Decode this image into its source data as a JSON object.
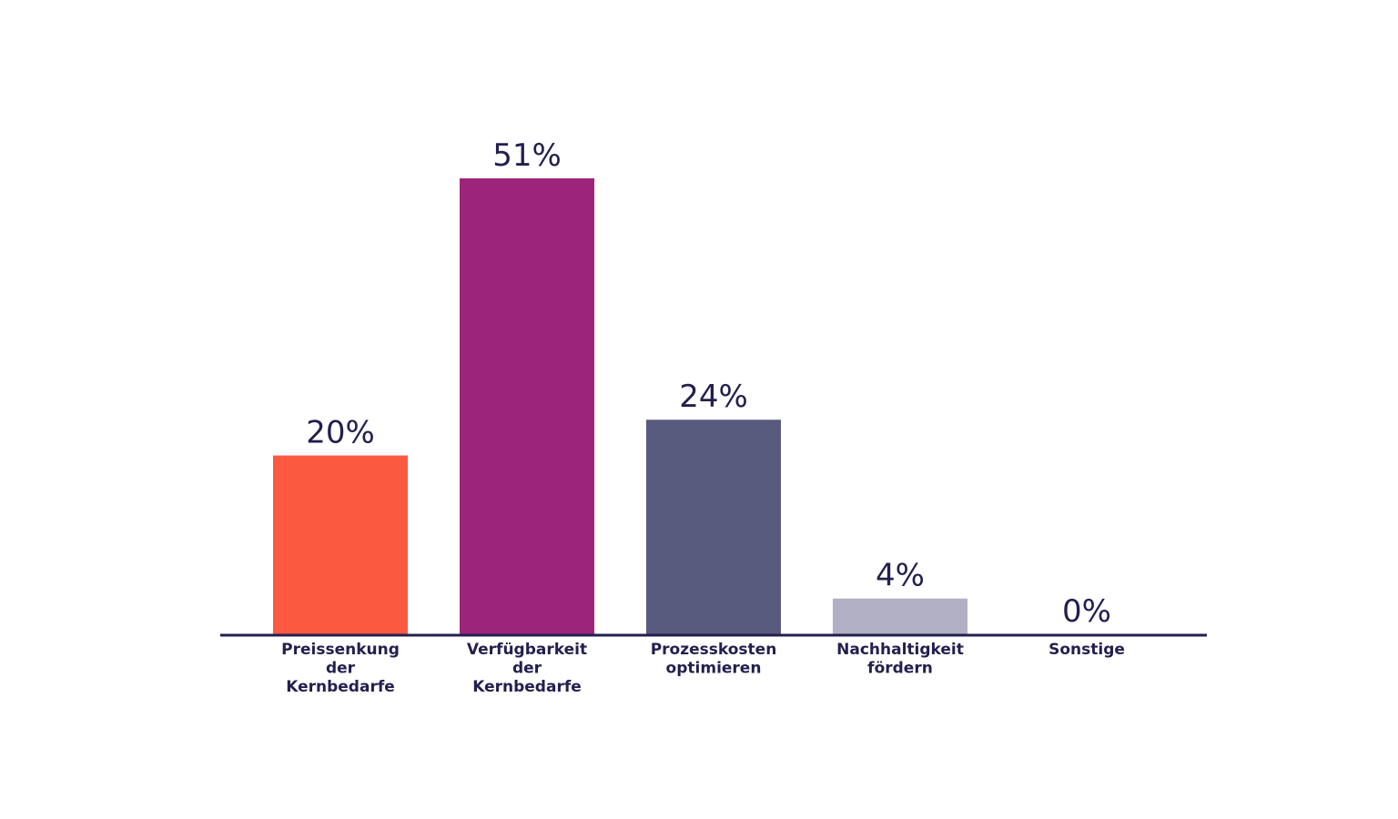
{
  "chart_data": {
    "type": "bar",
    "categories": [
      [
        "Preissenkung",
        "der",
        "Kernbedarfe"
      ],
      [
        "Verfügbarkeit",
        "der",
        "Kernbedarfe"
      ],
      [
        "Prozesskosten",
        "optimieren"
      ],
      [
        "Nachhaltigkeit",
        "fördern"
      ],
      [
        "Sonstige"
      ]
    ],
    "values": [
      20,
      51,
      24,
      4,
      0
    ],
    "value_labels": [
      "20%",
      "51%",
      "24%",
      "4%",
      "0%"
    ],
    "colors": [
      "#fc5941",
      "#9c247b",
      "#595b7e",
      "#b1b0c4",
      "#b1b0c4"
    ],
    "unit": "%",
    "ylim": [
      0,
      51
    ],
    "title": "",
    "xlabel": "",
    "ylabel": "",
    "grid": false,
    "legend": "none"
  }
}
